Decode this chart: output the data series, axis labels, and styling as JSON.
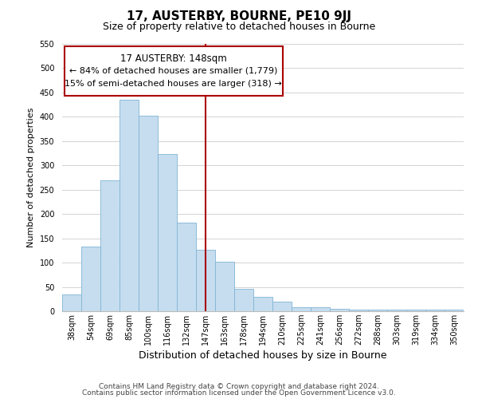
{
  "title": "17, AUSTERBY, BOURNE, PE10 9JJ",
  "subtitle": "Size of property relative to detached houses in Bourne",
  "xlabel": "Distribution of detached houses by size in Bourne",
  "ylabel": "Number of detached properties",
  "footer_line1": "Contains HM Land Registry data © Crown copyright and database right 2024.",
  "footer_line2": "Contains public sector information licensed under the Open Government Licence v3.0.",
  "bar_labels": [
    "38sqm",
    "54sqm",
    "69sqm",
    "85sqm",
    "100sqm",
    "116sqm",
    "132sqm",
    "147sqm",
    "163sqm",
    "178sqm",
    "194sqm",
    "210sqm",
    "225sqm",
    "241sqm",
    "256sqm",
    "272sqm",
    "288sqm",
    "303sqm",
    "319sqm",
    "334sqm",
    "350sqm"
  ],
  "bar_values": [
    35,
    133,
    270,
    435,
    403,
    324,
    182,
    126,
    101,
    46,
    30,
    20,
    8,
    8,
    5,
    3,
    3,
    3,
    3,
    3,
    3
  ],
  "bar_color": "#c6ddef",
  "bar_edge_color": "#7fb4d4",
  "highlight_index": 7,
  "highlight_line_color": "#aa0000",
  "ylim": [
    0,
    550
  ],
  "yticks": [
    0,
    50,
    100,
    150,
    200,
    250,
    300,
    350,
    400,
    450,
    500,
    550
  ],
  "annotation_title": "17 AUSTERBY: 148sqm",
  "annotation_line1": "← 84% of detached houses are smaller (1,779)",
  "annotation_line2": "15% of semi-detached houses are larger (318) →",
  "annotation_box_color": "#ffffff",
  "annotation_box_edge": "#aa0000",
  "bg_color": "#ffffff",
  "grid_color": "#cccccc",
  "title_fontsize": 11,
  "subtitle_fontsize": 9,
  "xlabel_fontsize": 9,
  "ylabel_fontsize": 8,
  "tick_fontsize": 7,
  "footer_fontsize": 6.5,
  "annot_title_fontsize": 8.5,
  "annot_text_fontsize": 8
}
